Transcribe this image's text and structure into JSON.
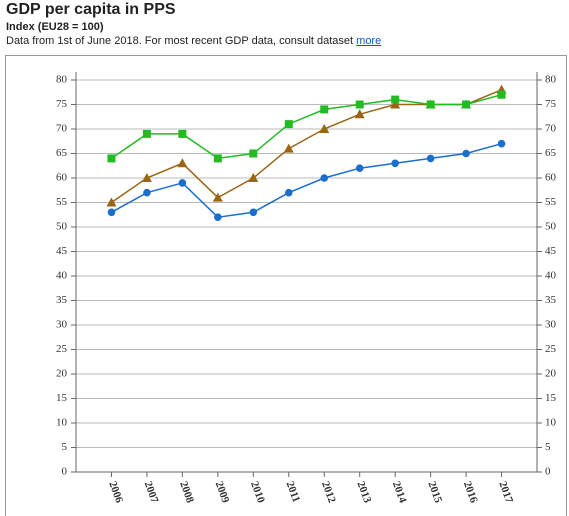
{
  "chart_data": {
    "type": "line",
    "title": "GDP per capita in PPS",
    "subtitle": "Index (EU28 = 100)",
    "note": "Data from 1st of June 2018. For most recent GDP data, consult dataset",
    "link_text": "more",
    "categories": [
      "2006",
      "2007",
      "2008",
      "2009",
      "2010",
      "2011",
      "2012",
      "2013",
      "2014",
      "2015",
      "2016",
      "2017"
    ],
    "series": [
      {
        "color": "#1a6fcc",
        "marker": "circle",
        "values": [
          53,
          57,
          59,
          52,
          53,
          57,
          60,
          62,
          63,
          64,
          65,
          67
        ]
      },
      {
        "color": "#9a6514",
        "marker": "triangle",
        "values": [
          55,
          60,
          63,
          56,
          60,
          66,
          70,
          73,
          75,
          75,
          75,
          78
        ]
      },
      {
        "color": "#22bb22",
        "marker": "square",
        "values": [
          64,
          69,
          69,
          64,
          65,
          71,
          74,
          75,
          76,
          75,
          75,
          77
        ]
      }
    ],
    "ylim": [
      0,
      80
    ],
    "yticks": [
      0,
      5,
      10,
      15,
      20,
      25,
      30,
      35,
      40,
      45,
      50,
      55,
      60,
      65,
      70,
      75,
      80
    ],
    "y2lim": [
      0,
      80
    ],
    "y2ticks": [
      0,
      5,
      10,
      15,
      20,
      25,
      30,
      35,
      40,
      45,
      50,
      55,
      60,
      65,
      70,
      75,
      80
    ],
    "grid": true
  }
}
